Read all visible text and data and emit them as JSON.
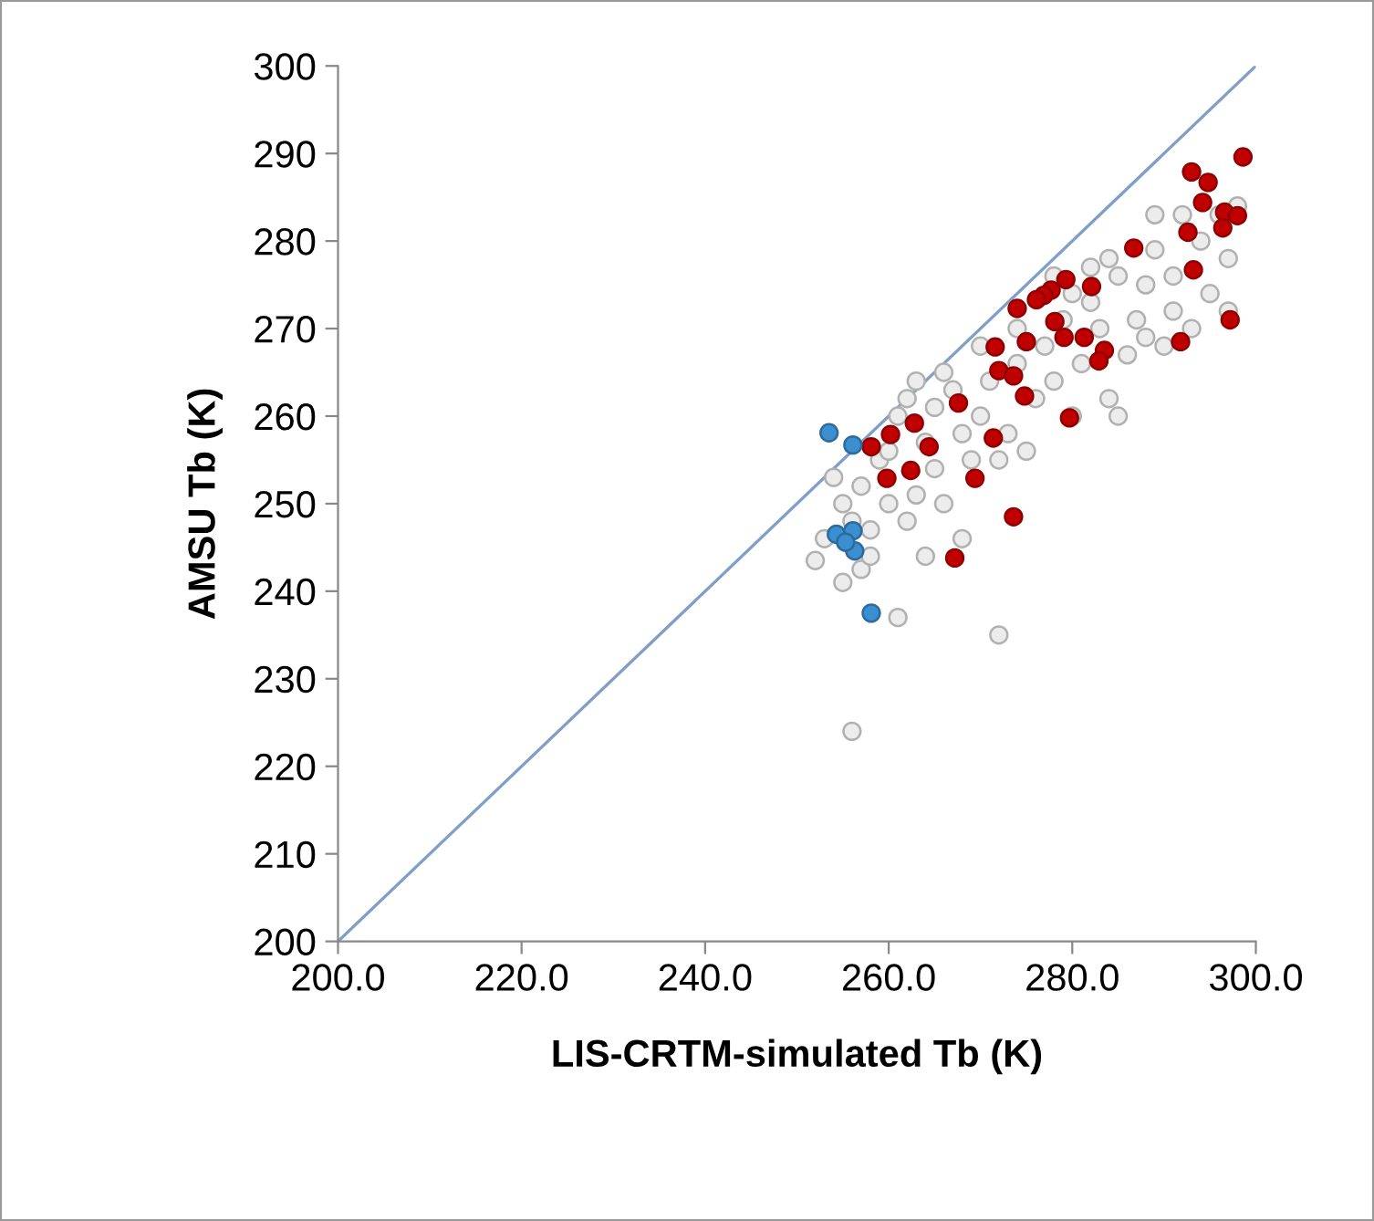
{
  "chart_data": {
    "type": "scatter",
    "xlabel": "LIS-CRTM-simulated Tb (K)",
    "ylabel": "AMSU Tb (K)",
    "xlim": [
      200,
      300
    ],
    "ylim": [
      200,
      300
    ],
    "xticks": [
      {
        "value": 200,
        "label": "200.0"
      },
      {
        "value": 220,
        "label": "220.0"
      },
      {
        "value": 240,
        "label": "240.0"
      },
      {
        "value": 260,
        "label": "260.0"
      },
      {
        "value": 280,
        "label": "280.0"
      },
      {
        "value": 300,
        "label": "300.0"
      }
    ],
    "yticks": [
      200,
      210,
      220,
      230,
      240,
      250,
      260,
      270,
      280,
      290,
      300
    ],
    "grid": false,
    "marker": "circle",
    "series": [
      {
        "type": "line",
        "color": "#7f9fc8",
        "x": [
          200,
          300
        ],
        "values": [
          200,
          300
        ],
        "marker": "none"
      },
      {
        "color": "#ececec",
        "x": [
          252,
          254,
          255,
          256,
          257,
          256,
          257,
          258,
          259,
          260,
          261,
          261,
          262,
          262,
          263,
          264,
          264,
          265,
          265,
          266,
          267,
          268,
          268,
          269,
          270,
          271,
          272,
          272,
          273,
          274,
          275,
          276,
          277,
          278,
          279,
          280,
          281,
          282,
          283,
          284,
          285,
          285,
          286,
          287,
          288,
          289,
          290,
          291,
          292,
          293,
          294,
          295,
          296,
          297,
          298,
          278,
          282,
          288,
          253,
          255,
          258,
          260,
          263,
          266,
          270,
          274,
          280,
          284,
          289,
          291,
          297
        ],
        "values": [
          243.5,
          253,
          250,
          248,
          252,
          224,
          242.5,
          244,
          255,
          250,
          237,
          260,
          248,
          262,
          251,
          257,
          244,
          254,
          261,
          250,
          263,
          258,
          246,
          255,
          260,
          264,
          255,
          235,
          258,
          266,
          256,
          262,
          268,
          264,
          271,
          260,
          266,
          273,
          270,
          262,
          260,
          276,
          267,
          271,
          275,
          279,
          268,
          276,
          283,
          270,
          280,
          274,
          283,
          278,
          284,
          276,
          277,
          269,
          246,
          241,
          247,
          256,
          264,
          265,
          268,
          270,
          274,
          278,
          283,
          272,
          272
        ]
      },
      {
        "color": "#c00000",
        "x": [
          298.6,
          293.0,
          294.8,
          294.2,
          296.6,
          298.0,
          296.4,
          292.6,
          286.7,
          293.2,
          297.2,
          291.8,
          279.3,
          277.7,
          276.9,
          276.1,
          274.0,
          282.1,
          278.1,
          279.1,
          281.3,
          283.5,
          282.9,
          275.0,
          271.6,
          272.0,
          273.6,
          274.8,
          279.7,
          267.6,
          271.4,
          262.8,
          260.2,
          258.1,
          264.4,
          269.4,
          259.8,
          262.4,
          273.6,
          267.2
        ],
        "values": [
          289.6,
          287.9,
          286.7,
          284.4,
          283.3,
          282.9,
          281.5,
          281.0,
          279.2,
          276.7,
          271.0,
          268.5,
          275.6,
          274.4,
          273.8,
          273.3,
          272.3,
          274.8,
          270.8,
          269.0,
          269.0,
          267.5,
          266.3,
          268.5,
          267.9,
          265.2,
          264.6,
          262.3,
          259.8,
          261.5,
          257.5,
          259.2,
          257.9,
          256.5,
          256.5,
          252.9,
          252.9,
          253.8,
          248.5,
          243.8
        ]
      },
      {
        "color": "#3b8fd0",
        "x": [
          253.5,
          256.1,
          254.3,
          256.1,
          256.3,
          255.3,
          258.1
        ],
        "values": [
          258.1,
          256.7,
          246.5,
          246.9,
          244.6,
          245.6,
          237.5
        ]
      }
    ]
  }
}
